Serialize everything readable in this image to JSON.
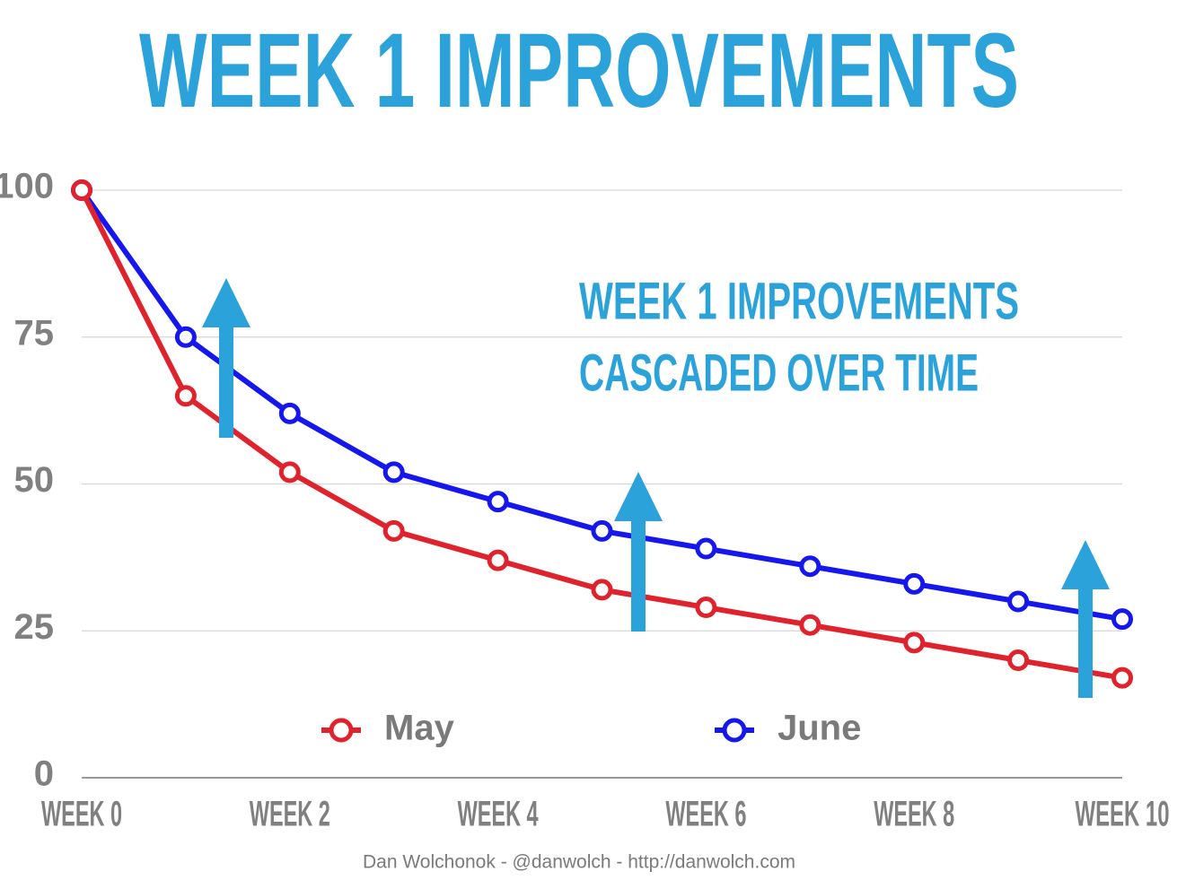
{
  "chart_data": {
    "type": "line",
    "title": "WEEK 1 IMPROVEMENTS",
    "annotation": [
      "WEEK 1 IMPROVEMENTS",
      "CASCADED OVER TIME"
    ],
    "footer": "Dan Wolchonok - @danwolch - http://danwolch.com",
    "categories": [
      "WEEK 0",
      null,
      "WEEK 2",
      null,
      "WEEK 4",
      null,
      "WEEK 6",
      null,
      "WEEK 8",
      null,
      "WEEK 10"
    ],
    "series": [
      {
        "name": "May",
        "color": "#e0222c",
        "values": [
          100,
          65,
          52,
          42,
          37,
          32,
          29,
          26,
          23,
          20,
          17
        ]
      },
      {
        "name": "June",
        "color": "#1616ee",
        "values": [
          100,
          75,
          62,
          52,
          47,
          42,
          39,
          36,
          33,
          30,
          27
        ]
      }
    ],
    "ylim": [
      0,
      100
    ],
    "yticks": [
      0,
      25,
      50,
      75,
      100
    ],
    "grid": true
  }
}
